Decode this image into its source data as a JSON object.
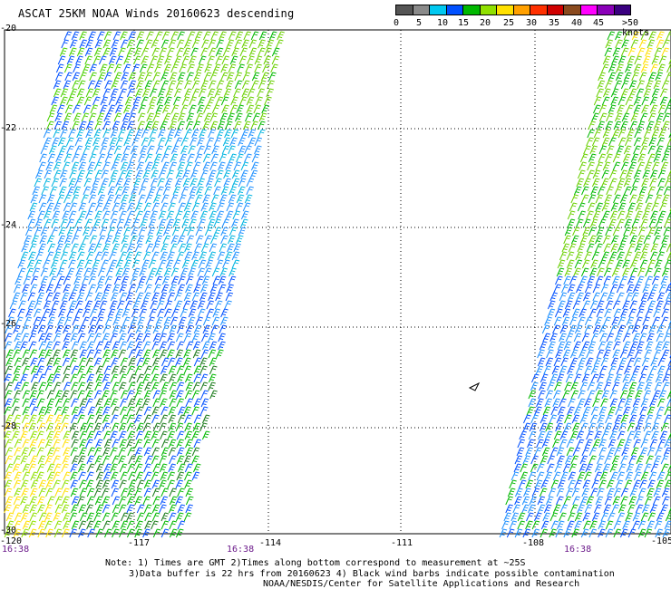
{
  "title": "ASCAT 25KM NOAA Winds 20160623 descending",
  "legend": {
    "colors": [
      "#555555",
      "#8a8a8a",
      "#00c8f0",
      "#0050ff",
      "#00b800",
      "#90e000",
      "#ffe000",
      "#ffa000",
      "#ff3000",
      "#d00000",
      "#8a4a1e",
      "#ff00ff",
      "#8a00b8",
      "#3a0080"
    ],
    "labels": [
      "0",
      "5",
      "10",
      "15",
      "20",
      "25",
      "30",
      "35",
      "40",
      "45",
      ">50 knots"
    ]
  },
  "axes": {
    "lat_labels": [
      "-20",
      "-22",
      "-24",
      "-26",
      "-28",
      "-30"
    ],
    "lon_labels": [
      "-120",
      "-117",
      "-114",
      "-111",
      "-108",
      "-105"
    ]
  },
  "times": [
    "16:38",
    "16:38",
    "16:38"
  ],
  "notes": [
    "Note: 1) Times are GMT 2)Times along bottom correspond to measurement at ~25S",
    "3)Data buffer is 22 hrs from 20160623 4) Black wind barbs indicate possible contamination",
    "NOAA/NESDIS/Center for Satellite Applications and Research"
  ]
}
